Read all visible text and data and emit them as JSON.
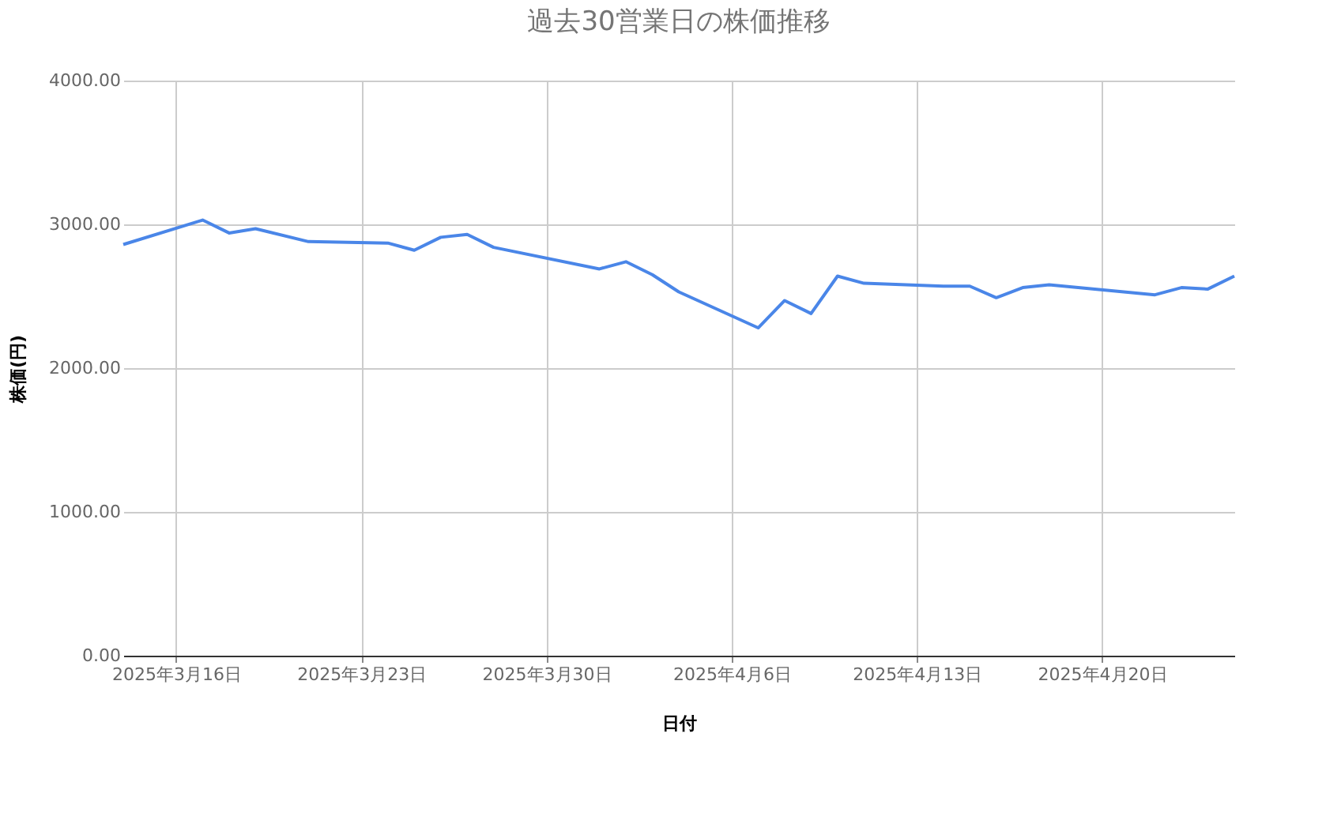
{
  "chart_data": {
    "type": "line",
    "title": "過去30営業日の株価推移",
    "xlabel": "日付",
    "ylabel": "株価(円)",
    "x": [
      "2025-03-14",
      "2025-03-17",
      "2025-03-18",
      "2025-03-19",
      "2025-03-21",
      "2025-03-24",
      "2025-03-25",
      "2025-03-26",
      "2025-03-27",
      "2025-03-28",
      "2025-04-01",
      "2025-04-02",
      "2025-04-03",
      "2025-04-04",
      "2025-04-07",
      "2025-04-08",
      "2025-04-09",
      "2025-04-10",
      "2025-04-11",
      "2025-04-14",
      "2025-04-15",
      "2025-04-16",
      "2025-04-17",
      "2025-04-18",
      "2025-04-22",
      "2025-04-23",
      "2025-04-24",
      "2025-04-25"
    ],
    "series": [
      {
        "color": "#4a86e8",
        "values": [
          2860,
          3030,
          2940,
          2970,
          2880,
          2870,
          2820,
          2910,
          2930,
          2840,
          2690,
          2740,
          2650,
          2530,
          2280,
          2470,
          2380,
          2640,
          2590,
          2570,
          2570,
          2490,
          2560,
          2580,
          2510,
          2560,
          2550,
          2640
        ]
      }
    ],
    "xlim": [
      "2025-03-14",
      "2025-04-25"
    ],
    "xticks": [
      {
        "value": "2025-03-16",
        "label": "2025年3月16日"
      },
      {
        "value": "2025-03-23",
        "label": "2025年3月23日"
      },
      {
        "value": "2025-03-30",
        "label": "2025年3月30日"
      },
      {
        "value": "2025-04-06",
        "label": "2025年4月6日"
      },
      {
        "value": "2025-04-13",
        "label": "2025年4月13日"
      },
      {
        "value": "2025-04-20",
        "label": "2025年4月20日"
      }
    ],
    "ylim": [
      0,
      4000
    ],
    "yticks": [
      {
        "value": 0,
        "label": "0.00"
      },
      {
        "value": 1000,
        "label": "1000.00"
      },
      {
        "value": 2000,
        "label": "2000.00"
      },
      {
        "value": 3000,
        "label": "3000.00"
      },
      {
        "value": 4000,
        "label": "4000.00"
      }
    ],
    "grid": true,
    "legend": false,
    "marker": "none",
    "line_style": "solid"
  }
}
